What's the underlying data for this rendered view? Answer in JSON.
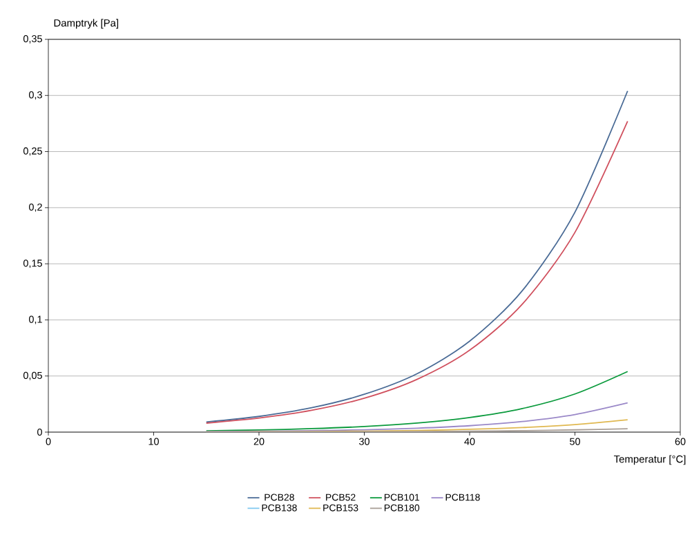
{
  "chart_data": {
    "type": "line",
    "xlabel": "Temperatur [°C]",
    "ylabel": "Damptryk [Pa]",
    "x": [
      15,
      20,
      25,
      30,
      35,
      40,
      45,
      50,
      55
    ],
    "series": [
      {
        "name": "PCB28",
        "color": "#4a6b96",
        "values": [
          0.009,
          0.014,
          0.0217,
          0.0337,
          0.052,
          0.081,
          0.126,
          0.196,
          0.304
        ]
      },
      {
        "name": "PCB52",
        "color": "#d0505e",
        "values": [
          0.008,
          0.0125,
          0.0194,
          0.0302,
          0.047,
          0.073,
          0.114,
          0.178,
          0.277
        ]
      },
      {
        "name": "PCB101",
        "color": "#0a9a3c",
        "values": [
          0.0012,
          0.0019,
          0.0031,
          0.005,
          0.0081,
          0.013,
          0.021,
          0.034,
          0.054
        ]
      },
      {
        "name": "PCB118",
        "color": "#9a88c8",
        "values": [
          0.0005,
          0.0008,
          0.0013,
          0.0021,
          0.0035,
          0.0057,
          0.0094,
          0.0156,
          0.026
        ]
      },
      {
        "name": "PCB138",
        "color": "#80c8f0",
        "values": [
          null,
          null,
          null,
          null,
          null,
          null,
          null,
          null,
          null
        ]
      },
      {
        "name": "PCB153",
        "color": "#e0b850",
        "values": [
          0.0002,
          0.0003,
          0.0005,
          0.0009,
          0.0015,
          0.0025,
          0.0041,
          0.0067,
          0.011
        ]
      },
      {
        "name": "PCB180",
        "color": "#a89e96",
        "values": [
          0.0001,
          0.0001,
          0.0002,
          0.0003,
          0.0005,
          0.0008,
          0.0013,
          0.002,
          0.003
        ]
      }
    ],
    "xlim": [
      0,
      60
    ],
    "xticks": [
      0,
      10,
      20,
      30,
      40,
      50,
      60
    ],
    "ylim": [
      0,
      0.35
    ],
    "yticks": [
      0,
      {
        "value": 0.05,
        "label": "0,05"
      },
      {
        "value": 0.1,
        "label": "0,1"
      },
      {
        "value": 0.15,
        "label": "0,15"
      },
      {
        "value": 0.2,
        "label": "0,2"
      },
      {
        "value": 0.25,
        "label": "0,25"
      },
      {
        "value": 0.3,
        "label": "0,3"
      },
      {
        "value": 0.35,
        "label": "0,35"
      }
    ],
    "grid": "y",
    "legend": "bottom",
    "marker": "none",
    "line_style": "solid"
  }
}
